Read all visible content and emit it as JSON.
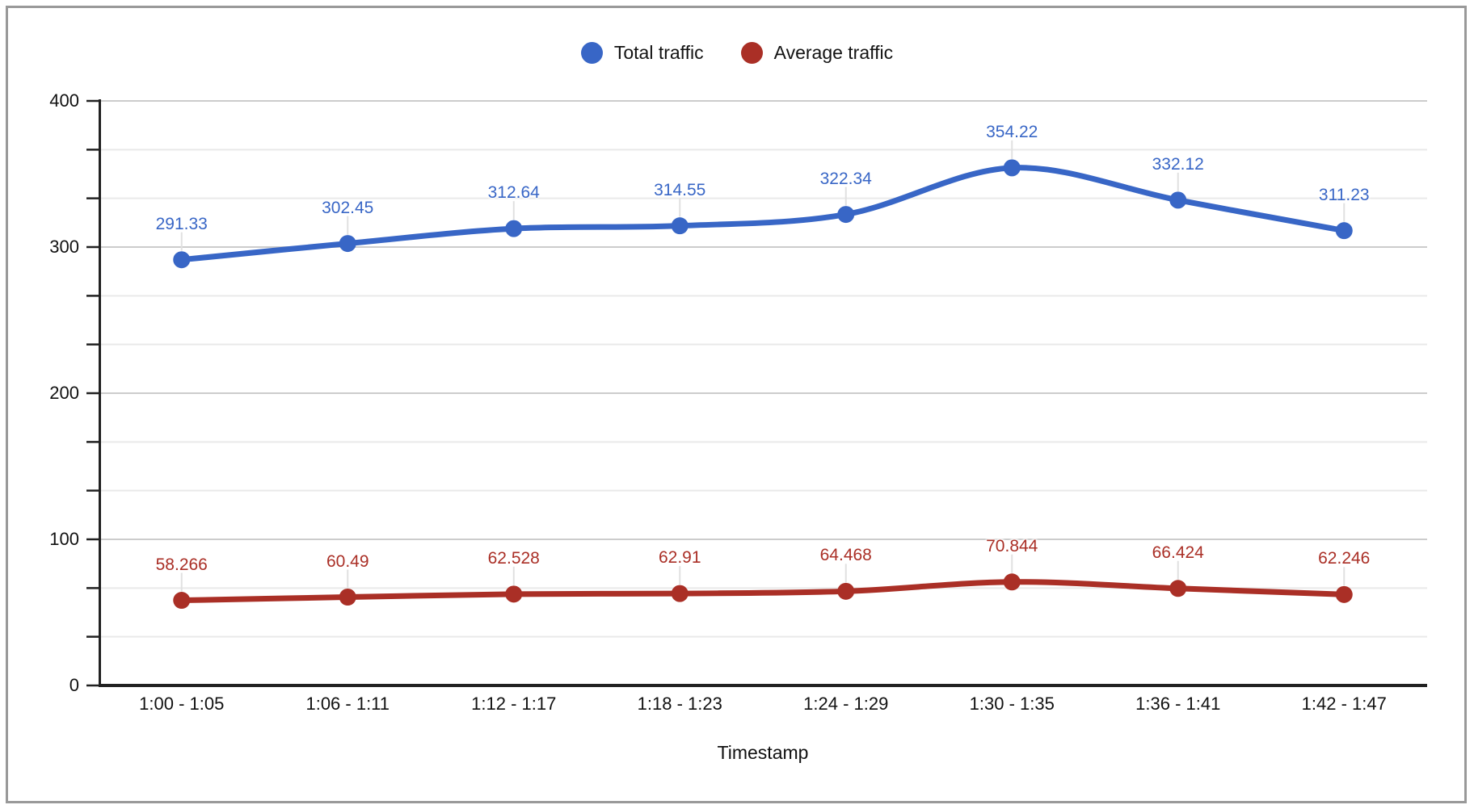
{
  "chart_data": {
    "type": "line",
    "smooth": true,
    "title": "",
    "xlabel": "Timestamp",
    "ylabel": "",
    "legend_position": "top",
    "categories": [
      "1:00 - 1:05",
      "1:06 - 1:11",
      "1:12 - 1:17",
      "1:18 - 1:23",
      "1:24 - 1:29",
      "1:30 - 1:35",
      "1:36 - 1:41",
      "1:42 - 1:47"
    ],
    "series": [
      {
        "name": "Total traffic",
        "color": "#3866C6",
        "values": [
          291.33,
          302.45,
          312.64,
          314.55,
          322.34,
          354.22,
          332.12,
          311.23
        ],
        "point_labels": [
          "291.33",
          "302.45",
          "312.64",
          "314.55",
          "322.34",
          "354.22",
          "332.12",
          "311.23"
        ]
      },
      {
        "name": "Average traffic",
        "color": "#AA2F26",
        "values": [
          58.266,
          60.49,
          62.528,
          62.91,
          64.468,
          70.844,
          66.424,
          62.246
        ],
        "point_labels": [
          "58.266",
          "60.49",
          "62.528",
          "62.91",
          "64.468",
          "70.844",
          "66.424",
          "62.246"
        ]
      }
    ],
    "y_axis": {
      "min": 0,
      "max": 400,
      "major_step": 100,
      "minor_per_major": 3,
      "tick_labels": [
        "0",
        "100",
        "200",
        "300",
        "400"
      ]
    },
    "grid": {
      "on": true,
      "major_color": "#cccccc",
      "minor_color": "#e9e9e9"
    },
    "colors": {
      "axis": "#212121",
      "text": "#111111",
      "label_connector": "#e0e0e0",
      "background": "#ffffff",
      "border": "#999999"
    }
  }
}
